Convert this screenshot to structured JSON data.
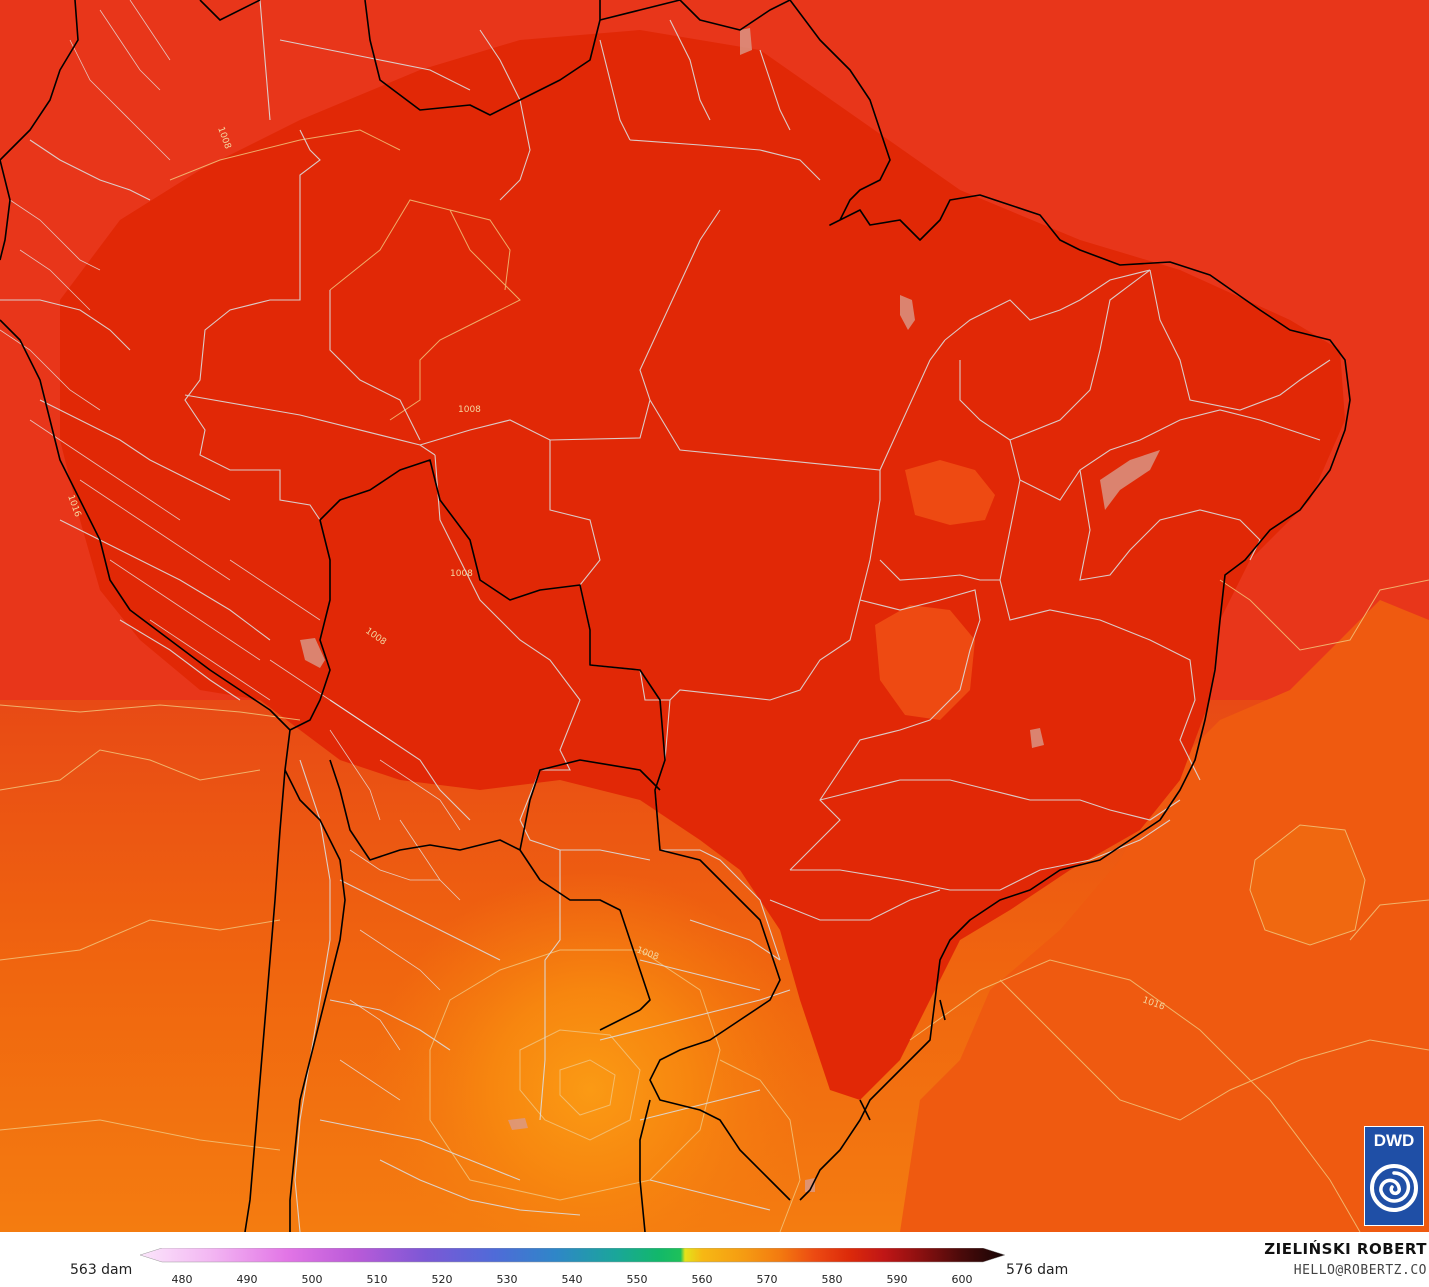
{
  "map": {
    "contour_labels": [
      "1008",
      "1008",
      "1008",
      "1008",
      "1016",
      "1016",
      "1008"
    ]
  },
  "legend": {
    "min_label": "563 dam",
    "max_label": "576 dam",
    "ticks": [
      "480",
      "490",
      "500",
      "510",
      "520",
      "530",
      "540",
      "550",
      "560",
      "570",
      "580",
      "590",
      "600"
    ]
  },
  "credit": {
    "name": "ZIELIŃSKI ROBERT",
    "email": "HELLO@ROBERTZ.CO"
  },
  "logo": {
    "text": "DWD"
  },
  "colors": {
    "ocean_north": "#e8361a",
    "land_core": "#e02a05",
    "south_warm": "#f47a10",
    "hot_spot": "#f99512",
    "coast_line": "#000000",
    "border_line": "#d9d9d9",
    "isobar": "#f2c37a",
    "logo_bg": "#1f4fa6"
  }
}
